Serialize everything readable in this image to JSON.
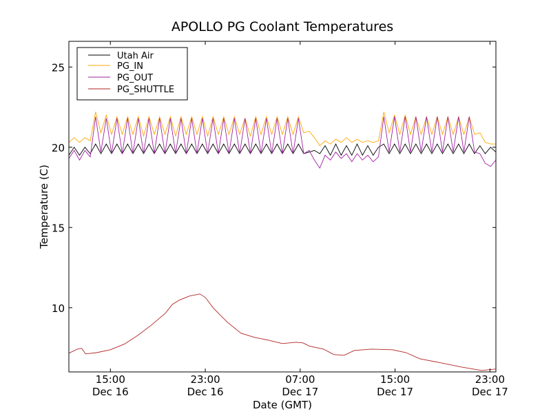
{
  "chart_data": {
    "type": "line",
    "title": "APOLLO PG Coolant Temperatures",
    "xlabel": "Date (GMT)",
    "ylabel": "Temperature (C)",
    "xlim_hours_from_dec16_0000": [
      11.5,
      47.5
    ],
    "ylim": [
      6.0,
      26.6
    ],
    "grid": false,
    "legend_position": "top-left",
    "yticks": [
      10,
      15,
      20,
      25
    ],
    "xticks": [
      {
        "hour": 15,
        "time": "15:00",
        "date": "Dec 16"
      },
      {
        "hour": 23,
        "time": "23:00",
        "date": "Dec 16"
      },
      {
        "hour": 31,
        "time": "07:00",
        "date": "Dec 17"
      },
      {
        "hour": 39,
        "time": "15:00",
        "date": "Dec 17"
      },
      {
        "hour": 47,
        "time": "23:00",
        "date": "Dec 17"
      }
    ],
    "x_start": 11.5,
    "x_step": 0.45,
    "series": [
      {
        "name": "Utah Air",
        "color": "#000000",
        "values": [
          19.5,
          20.0,
          19.5,
          20.0,
          19.6,
          20.2,
          19.6,
          20.2,
          19.6,
          20.2,
          19.6,
          20.2,
          19.6,
          20.2,
          19.6,
          20.2,
          19.6,
          20.2,
          19.6,
          20.2,
          19.6,
          20.2,
          19.6,
          20.2,
          19.6,
          20.2,
          19.6,
          20.2,
          19.6,
          20.2,
          19.6,
          20.2,
          19.6,
          20.2,
          19.6,
          20.2,
          19.6,
          20.2,
          19.6,
          20.2,
          19.6,
          20.2,
          19.6,
          20.2,
          19.6,
          19.7,
          19.8,
          19.6,
          20.1,
          19.5,
          20.2,
          19.5,
          20.1,
          19.5,
          20.2,
          19.5,
          20.1,
          19.5,
          20.0,
          20.2,
          19.6,
          20.2,
          19.6,
          20.2,
          19.6,
          20.2,
          19.6,
          20.2,
          19.6,
          20.2,
          19.6,
          20.2,
          19.6,
          20.2,
          19.6,
          20.2,
          19.6,
          20.1,
          19.6,
          20.0,
          19.7
        ]
      },
      {
        "name": "PG_IN",
        "color": "#ffa500",
        "values": [
          20.3,
          20.6,
          20.3,
          20.6,
          20.4,
          22.2,
          20.9,
          22.0,
          20.8,
          21.9,
          20.8,
          21.9,
          20.8,
          21.9,
          20.7,
          21.9,
          20.8,
          21.9,
          20.8,
          21.9,
          20.7,
          21.9,
          20.8,
          21.9,
          20.8,
          21.9,
          20.7,
          21.9,
          20.8,
          21.9,
          20.8,
          21.9,
          20.8,
          21.8,
          20.7,
          21.9,
          20.8,
          21.9,
          20.8,
          21.9,
          20.8,
          21.9,
          20.8,
          21.9,
          20.9,
          21.0,
          20.6,
          20.1,
          20.4,
          20.2,
          20.5,
          20.3,
          20.6,
          20.3,
          20.5,
          20.3,
          20.4,
          20.3,
          20.4,
          22.2,
          20.9,
          22.0,
          20.8,
          22.0,
          20.8,
          21.9,
          20.8,
          21.9,
          20.8,
          21.9,
          20.8,
          21.9,
          20.8,
          21.9,
          20.8,
          21.9,
          20.8,
          20.9,
          20.3,
          20.2,
          20.2
        ]
      },
      {
        "name": "PG_OUT",
        "color": "#a020a0",
        "values": [
          19.3,
          19.8,
          19.2,
          19.8,
          19.4,
          21.9,
          19.7,
          21.8,
          19.6,
          21.8,
          19.6,
          21.8,
          19.6,
          21.8,
          19.6,
          21.8,
          19.6,
          21.8,
          19.6,
          21.8,
          19.6,
          21.8,
          19.6,
          21.8,
          19.6,
          21.8,
          19.6,
          21.8,
          19.6,
          21.8,
          19.6,
          21.8,
          19.6,
          21.8,
          19.6,
          21.8,
          19.6,
          21.8,
          19.6,
          21.8,
          19.6,
          21.8,
          19.6,
          21.8,
          19.6,
          19.8,
          19.2,
          18.7,
          19.5,
          19.2,
          19.7,
          19.3,
          19.6,
          19.1,
          19.6,
          19.2,
          19.5,
          19.1,
          19.4,
          21.9,
          19.7,
          21.9,
          19.7,
          21.9,
          19.7,
          21.9,
          19.7,
          21.9,
          19.7,
          21.9,
          19.7,
          21.9,
          19.7,
          21.9,
          19.7,
          21.9,
          19.7,
          19.6,
          19.0,
          18.8,
          19.2
        ]
      },
      {
        "name": "PG_SHUTTLE",
        "color": "#b22222",
        "points": [
          [
            11.52,
            7.17
          ],
          [
            12.22,
            7.42
          ],
          [
            12.57,
            7.47
          ],
          [
            12.91,
            7.12
          ],
          [
            13.84,
            7.2
          ],
          [
            15.0,
            7.38
          ],
          [
            16.16,
            7.73
          ],
          [
            17.32,
            8.28
          ],
          [
            18.48,
            8.93
          ],
          [
            19.64,
            9.66
          ],
          [
            20.22,
            10.2
          ],
          [
            20.8,
            10.47
          ],
          [
            21.67,
            10.73
          ],
          [
            22.54,
            10.86
          ],
          [
            23.0,
            10.64
          ],
          [
            23.7,
            9.96
          ],
          [
            24.86,
            9.1
          ],
          [
            26.01,
            8.41
          ],
          [
            27.17,
            8.15
          ],
          [
            28.33,
            7.98
          ],
          [
            29.49,
            7.77
          ],
          [
            30.65,
            7.85
          ],
          [
            31.23,
            7.81
          ],
          [
            31.81,
            7.6
          ],
          [
            32.97,
            7.42
          ],
          [
            33.84,
            7.08
          ],
          [
            34.71,
            7.04
          ],
          [
            35.58,
            7.34
          ],
          [
            37.03,
            7.42
          ],
          [
            38.77,
            7.38
          ],
          [
            39.93,
            7.2
          ],
          [
            41.09,
            6.82
          ],
          [
            42.83,
            6.57
          ],
          [
            44.57,
            6.31
          ],
          [
            46.3,
            6.09
          ],
          [
            47.46,
            6.18
          ]
        ]
      }
    ]
  }
}
